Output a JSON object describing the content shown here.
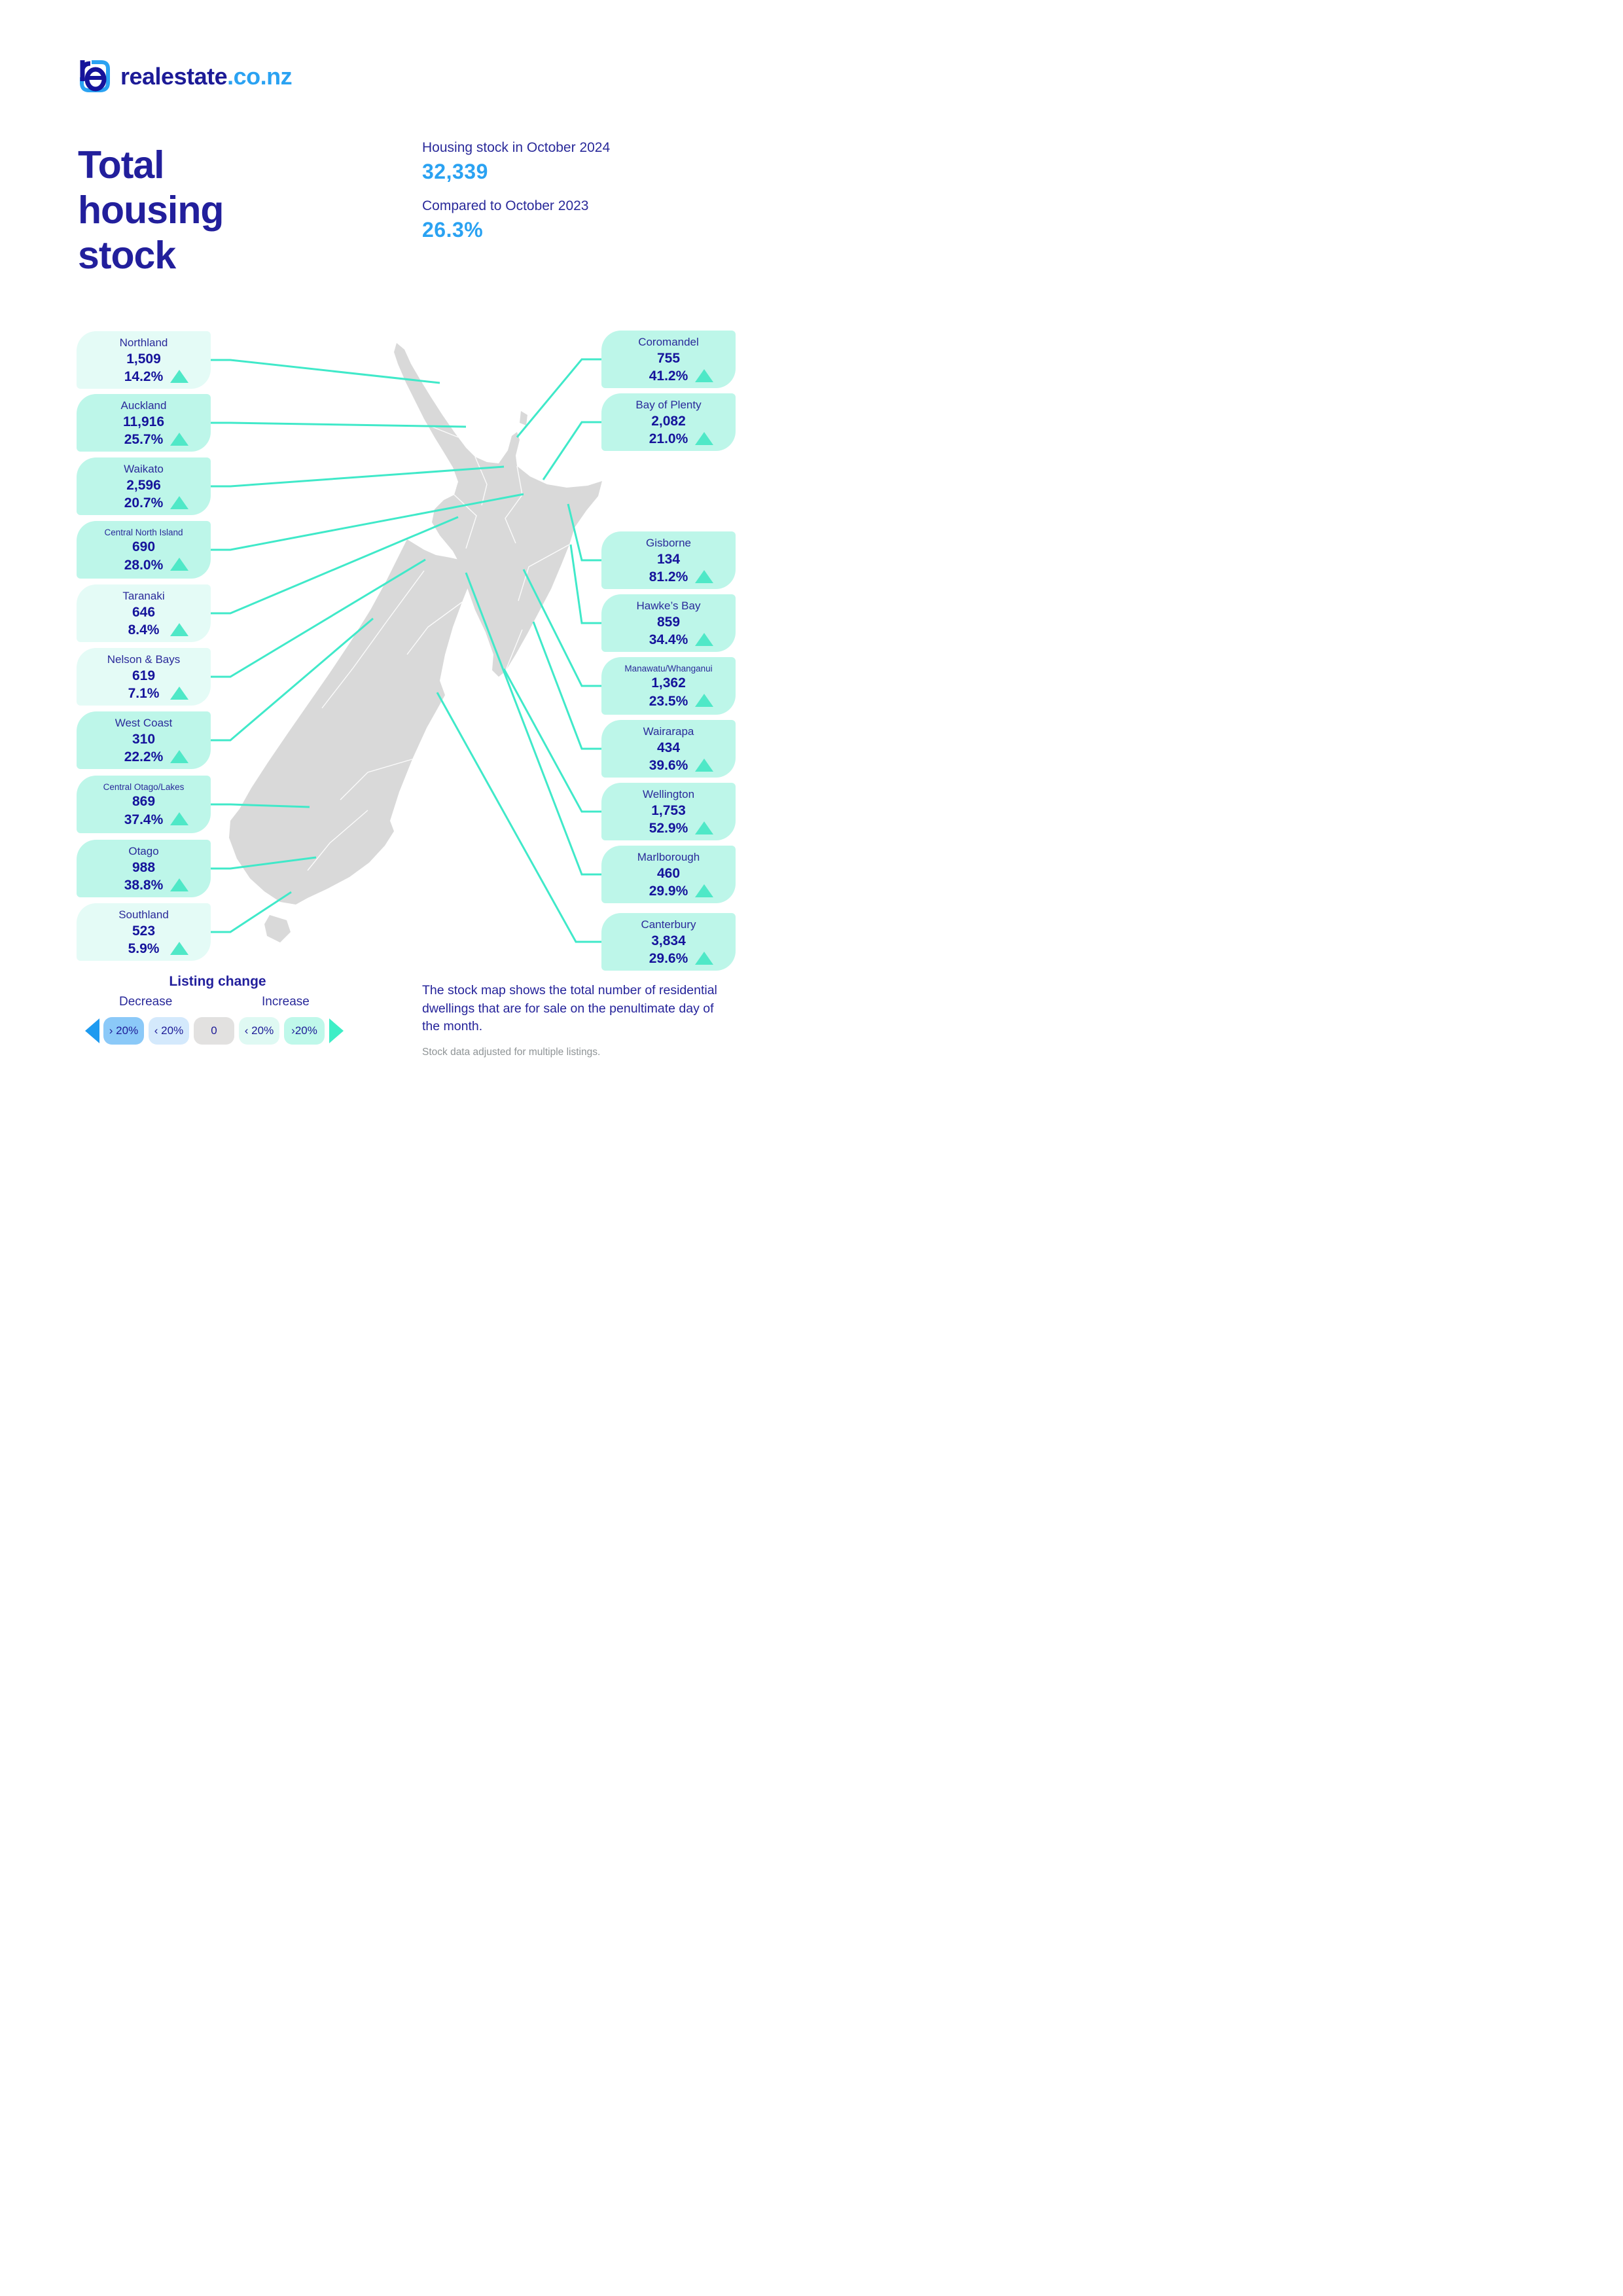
{
  "brand": {
    "wordmark": "realestate",
    "tld": ".co.nz",
    "icon": "re-logo"
  },
  "header": {
    "title": "Total housing stock",
    "stats": [
      {
        "label": "Housing stock in October 2024",
        "value": "32,339"
      },
      {
        "label": "Compared to October 2023",
        "value": "26.3%"
      }
    ]
  },
  "chart_data": {
    "type": "map-callouts",
    "title": "Total housing stock",
    "national_stock_oct_2024": 32339,
    "national_change_vs_oct_2023_pct": 26.3,
    "regions_left": [
      {
        "name": "Northland",
        "stock": "1,509",
        "change": "14.2%",
        "direction": "up",
        "tint": "light"
      },
      {
        "name": "Auckland",
        "stock": "11,916",
        "change": "25.7%",
        "direction": "up",
        "tint": "dark"
      },
      {
        "name": "Waikato",
        "stock": "2,596",
        "change": "20.7%",
        "direction": "up",
        "tint": "dark"
      },
      {
        "name": "Central North Island",
        "stock": "690",
        "change": "28.0%",
        "direction": "up",
        "tint": "dark"
      },
      {
        "name": "Taranaki",
        "stock": "646",
        "change": "8.4%",
        "direction": "up",
        "tint": "light"
      },
      {
        "name": "Nelson & Bays",
        "stock": "619",
        "change": "7.1%",
        "direction": "up",
        "tint": "light"
      },
      {
        "name": "West Coast",
        "stock": "310",
        "change": "22.2%",
        "direction": "up",
        "tint": "dark"
      },
      {
        "name": "Central Otago/Lakes",
        "stock": "869",
        "change": "37.4%",
        "direction": "up",
        "tint": "dark"
      },
      {
        "name": "Otago",
        "stock": "988",
        "change": "38.8%",
        "direction": "up",
        "tint": "dark"
      },
      {
        "name": "Southland",
        "stock": "523",
        "change": "5.9%",
        "direction": "up",
        "tint": "light"
      }
    ],
    "regions_right": [
      {
        "name": "Coromandel",
        "stock": "755",
        "change": "41.2%",
        "direction": "up",
        "tint": "dark"
      },
      {
        "name": "Bay of Plenty",
        "stock": "2,082",
        "change": "21.0%",
        "direction": "up",
        "tint": "dark"
      },
      {
        "name": "Gisborne",
        "stock": "134",
        "change": "81.2%",
        "direction": "up",
        "tint": "dark"
      },
      {
        "name": "Hawke’s Bay",
        "stock": "859",
        "change": "34.4%",
        "direction": "up",
        "tint": "dark"
      },
      {
        "name": "Manawatu/Whanganui",
        "stock": "1,362",
        "change": "23.5%",
        "direction": "up",
        "tint": "dark"
      },
      {
        "name": "Wairarapa",
        "stock": "434",
        "change": "39.6%",
        "direction": "up",
        "tint": "dark"
      },
      {
        "name": "Wellington",
        "stock": "1,753",
        "change": "52.9%",
        "direction": "up",
        "tint": "dark"
      },
      {
        "name": "Marlborough",
        "stock": "460",
        "change": "29.9%",
        "direction": "up",
        "tint": "dark"
      },
      {
        "name": "Canterbury",
        "stock": "3,834",
        "change": "29.6%",
        "direction": "up",
        "tint": "dark"
      }
    ]
  },
  "legend": {
    "title": "Listing change",
    "decrease_label": "Decrease",
    "increase_label": "Increase",
    "buckets": [
      {
        "label": "› 20%",
        "color": "#8bc9f8"
      },
      {
        "label": "‹ 20%",
        "color": "#d4e9fc"
      },
      {
        "label": "0",
        "color": "#e2e1e0"
      },
      {
        "label": "‹ 20%",
        "color": "#dff9f3"
      },
      {
        "label": "›20%",
        "color": "#bff8ea"
      }
    ],
    "decrease_arrow_color": "#1d9af0",
    "increase_arrow_color": "#3eeec6"
  },
  "footnote": {
    "main": "The stock map shows the total number of residential dwellings that are for sale on the penultimate day of the month.",
    "sub": "Stock data adjusted for multiple listings."
  },
  "colors": {
    "navy_text": "#1d1b97",
    "accent_blue": "#2aa2f2",
    "mint_light_card": "#e4fbf6",
    "mint_dark_card": "#bdf6e9",
    "triangle_teal": "#4fe8c7",
    "connector_teal": "#40e9c9",
    "map_gray": "#d9d9d9",
    "footnote_gray": "#8f9496"
  }
}
